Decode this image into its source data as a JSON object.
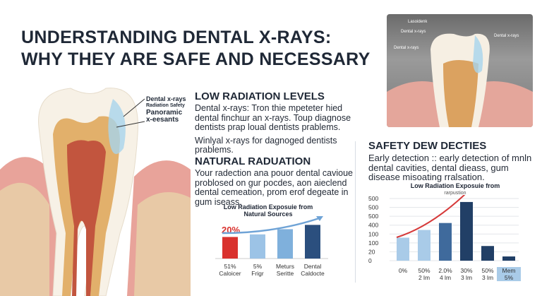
{
  "title": {
    "line1": "UNDERSTANDING DENTAL X-RAYS:",
    "line2": "WHY THEY ARE SAFE AND NECESSARY"
  },
  "tooth_labels": [
    "Dental x-rays",
    "Radiation Safety",
    "Panoramic",
    "x-eesants"
  ],
  "xray_image_labels": [
    "Lasoidenk",
    "Dental x-rays",
    "Dental x-rays",
    "Dental x-rays"
  ],
  "low_radiation": {
    "heading": "LOW RADIATION LEVELS",
    "para1": "Dental x-rays: Tron thie mpeteter hied dental finchшr an x-rays. Toup diagnose dentists prap loual dentists prablems.",
    "para2": "Winlyal x-rays for dagnoged dentists prablems."
  },
  "natural_radiation": {
    "heading": "NATURAL RADUATION",
    "para": "Your radection ana pouor dental cavioue problosed on gur pocdes, aon aieclend dental cemeation, prom erof degeate in gum iseass."
  },
  "safety": {
    "heading": "SAFETY DEW DECTIES",
    "para": "Early detection :: early detection of mnln dental cavities, dental dieass, gum disease misoating rralsation."
  },
  "colors": {
    "red": "#d9322e",
    "light_blue": "#9cc3e6",
    "mid_blue": "#4a78aa",
    "navy": "#213f66",
    "curve_red": "#d63a3a",
    "arrow_blue": "#6fa3d6"
  },
  "chart_data": [
    {
      "type": "bar",
      "title": "Low Radiation Exposuie from Natural Sources",
      "annotation": "20%",
      "categories": [
        "51% Caloicer",
        "5% Frigr",
        "Meturs Seritte",
        "Dental Caldocte"
      ],
      "tick_labels": [
        [
          "51%",
          "Caloicer"
        ],
        [
          "5%",
          "Frigr"
        ],
        [
          "Meturs",
          "Seritte"
        ],
        [
          "Dental",
          "Caldocte"
        ]
      ],
      "values": [
        25,
        28,
        34,
        39
      ],
      "bar_colors": [
        "#d9322e",
        "#9cc3e6",
        "#7fb0dc",
        "#2b4f7e"
      ],
      "trend_arrow": "increasing"
    },
    {
      "type": "bar",
      "title": "Low Radiation Exposuie from",
      "subtitle": "rarpustion",
      "y_tick_labels": [
        "500",
        "500",
        "500",
        "400",
        "100",
        "100",
        "20",
        "0"
      ],
      "ylim": [
        0,
        500
      ],
      "tick_labels": [
        [
          "0%",
          ""
        ],
        [
          "50%",
          "2 lm"
        ],
        [
          "2.0%",
          "4 lm"
        ],
        [
          "30%",
          "3 lm"
        ],
        [
          "50%",
          "3 lm"
        ],
        [
          "Mem",
          "5%"
        ]
      ],
      "values": [
        185,
        247,
        303,
        472,
        118,
        34
      ],
      "bar_colors": [
        "#a9cbe8",
        "#a9cbe8",
        "#3f6a9c",
        "#213f66",
        "#213f66",
        "#213f66"
      ],
      "trend_curve": "exponential increase",
      "grid": true,
      "highlighted_category": 5
    }
  ]
}
